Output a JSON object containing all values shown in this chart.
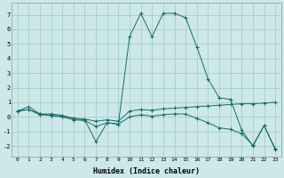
{
  "xlabel": "Humidex (Indice chaleur)",
  "background_color": "#cce8e8",
  "grid_color": "#aacccc",
  "line_color": "#1a6b6b",
  "xlim": [
    -0.5,
    23.5
  ],
  "ylim": [
    -2.7,
    7.8
  ],
  "yticks": [
    -2,
    -1,
    0,
    1,
    2,
    3,
    4,
    5,
    6,
    7
  ],
  "xticks": [
    0,
    1,
    2,
    3,
    4,
    5,
    6,
    7,
    8,
    9,
    10,
    11,
    12,
    13,
    14,
    15,
    16,
    17,
    18,
    19,
    20,
    21,
    22,
    23
  ],
  "line1_x": [
    0,
    1,
    2,
    3,
    4,
    5,
    6,
    7,
    8,
    9,
    10,
    11,
    12,
    13,
    14,
    15,
    16,
    17,
    18,
    19,
    20,
    21,
    22,
    23
  ],
  "line1_y": [
    0.4,
    0.7,
    0.2,
    0.2,
    0.1,
    -0.1,
    -0.2,
    -1.7,
    -0.4,
    -0.5,
    5.5,
    7.1,
    5.5,
    7.1,
    7.1,
    6.8,
    4.8,
    2.6,
    1.3,
    1.2,
    -0.9,
    -2.0,
    -0.6,
    -2.2
  ],
  "line2_x": [
    0,
    1,
    2,
    3,
    4,
    5,
    6,
    7,
    8,
    9,
    10,
    11,
    12,
    13,
    14,
    15,
    16,
    17,
    18,
    19,
    20,
    21,
    22,
    23
  ],
  "line2_y": [
    0.4,
    0.5,
    0.2,
    0.1,
    0.05,
    -0.1,
    -0.15,
    -0.3,
    -0.2,
    -0.3,
    0.4,
    0.5,
    0.45,
    0.55,
    0.6,
    0.65,
    0.7,
    0.75,
    0.8,
    0.85,
    0.9,
    0.9,
    0.95,
    1.0
  ],
  "line3_x": [
    0,
    1,
    2,
    3,
    4,
    5,
    6,
    7,
    8,
    9,
    10,
    11,
    12,
    13,
    14,
    15,
    16,
    17,
    18,
    19,
    20,
    21,
    22,
    23
  ],
  "line3_y": [
    0.4,
    0.5,
    0.15,
    0.1,
    0.0,
    -0.2,
    -0.25,
    -0.65,
    -0.4,
    -0.5,
    0.0,
    0.15,
    0.05,
    0.15,
    0.2,
    0.2,
    -0.1,
    -0.4,
    -0.75,
    -0.85,
    -1.15,
    -1.95,
    -0.6,
    -2.25
  ]
}
